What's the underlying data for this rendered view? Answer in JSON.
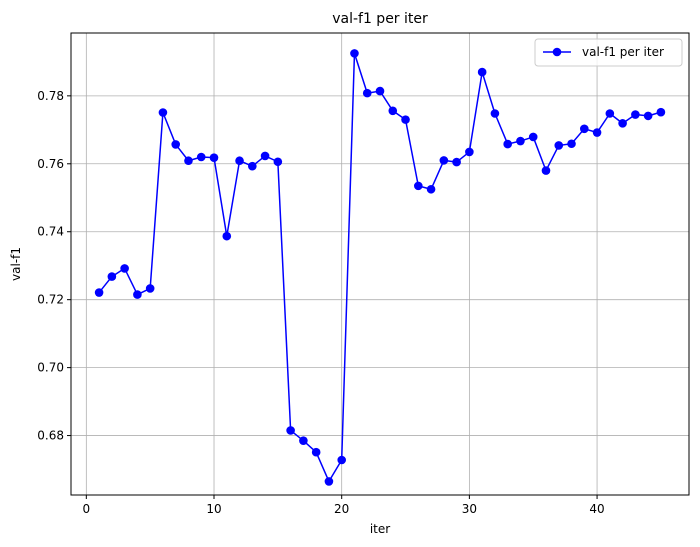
{
  "chart_data": {
    "type": "line",
    "title": "val-f1 per iter",
    "xlabel": "iter",
    "ylabel": "val-f1",
    "xlim": [
      -1.2,
      47.2
    ],
    "ylim": [
      0.6625,
      0.7985
    ],
    "xticks": [
      0,
      10,
      20,
      30,
      40
    ],
    "yticks": [
      0.68,
      0.7,
      0.72,
      0.74,
      0.76,
      0.78
    ],
    "ytick_labels": [
      "0.68",
      "0.70",
      "0.72",
      "0.74",
      "0.76",
      "0.78"
    ],
    "grid": true,
    "legend_position": "top-right",
    "series": [
      {
        "name": "val-f1 per iter",
        "color": "#0000ff",
        "marker": "circle",
        "x": [
          1,
          2,
          3,
          4,
          5,
          6,
          7,
          8,
          9,
          10,
          11,
          12,
          13,
          14,
          15,
          16,
          17,
          18,
          19,
          20,
          21,
          22,
          23,
          24,
          25,
          26,
          27,
          28,
          29,
          30,
          31,
          32,
          33,
          34,
          35,
          36,
          37,
          38,
          39,
          40,
          41,
          42,
          43,
          44,
          45
        ],
        "values": [
          0.7221,
          0.7268,
          0.7292,
          0.7215,
          0.7233,
          0.7751,
          0.7657,
          0.7609,
          0.762,
          0.7618,
          0.7387,
          0.7609,
          0.7593,
          0.7623,
          0.7606,
          0.6815,
          0.6785,
          0.6751,
          0.6665,
          0.6728,
          0.7925,
          0.7808,
          0.7814,
          0.7756,
          0.773,
          0.7535,
          0.7525,
          0.761,
          0.7605,
          0.7635,
          0.787,
          0.7748,
          0.7658,
          0.7667,
          0.7679,
          0.758,
          0.7654,
          0.7659,
          0.7703,
          0.7692,
          0.7748,
          0.7719,
          0.7745,
          0.7741,
          0.7752
        ]
      }
    ]
  }
}
